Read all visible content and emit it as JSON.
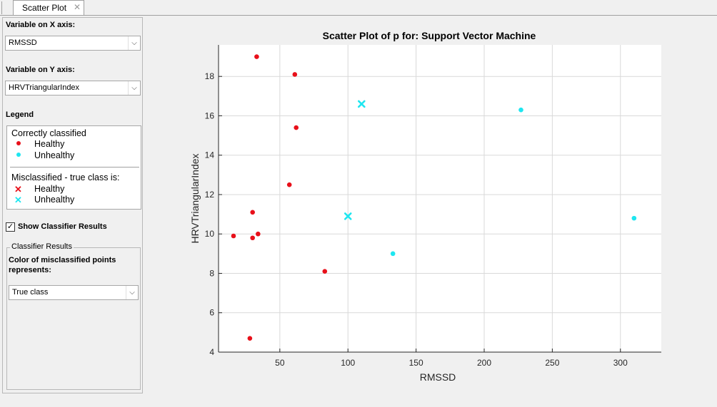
{
  "tab": {
    "label": "Scatter Plot",
    "close_glyph": "✕"
  },
  "panel": {
    "x_axis_label": "Variable on X axis:",
    "x_axis_value": "RMSSD",
    "y_axis_label": "Variable on Y axis:",
    "y_axis_value": "HRVTriangularIndex",
    "legend_heading": "Legend",
    "legend": {
      "correct_title": "Correctly classified",
      "correct_healthy": "Healthy",
      "correct_unhealthy": "Unhealthy",
      "mis_title": "Misclassified - true class is:",
      "mis_healthy": "Healthy",
      "mis_unhealthy": "Unhealthy"
    },
    "show_results_label": "Show Classifier Results",
    "show_results_checked": true,
    "group_title": "Classifier Results",
    "color_meaning_label": "Color of misclassified points represents:",
    "color_meaning_value": "True class"
  },
  "colors": {
    "healthy": "#e8101a",
    "unhealthy": "#1ee6f0",
    "grid": "#d9d9d9",
    "axis": "#262626"
  },
  "chart_data": {
    "type": "scatter",
    "title": "Scatter Plot of p for: Support Vector Machine",
    "xlabel": "RMSSD",
    "ylabel": "HRVTriangularIndex",
    "xlim": [
      5,
      330
    ],
    "ylim": [
      4,
      19.6
    ],
    "xticks": [
      50,
      100,
      150,
      200,
      250,
      300
    ],
    "yticks": [
      4,
      6,
      8,
      10,
      12,
      14,
      16,
      18
    ],
    "grid": true,
    "series": [
      {
        "name": "Correctly classified - Healthy",
        "marker": "dot",
        "color": "#e8101a",
        "points": [
          [
            33,
            19.0
          ],
          [
            61,
            18.1
          ],
          [
            62,
            15.4
          ],
          [
            57,
            12.5
          ],
          [
            30,
            11.1
          ],
          [
            16,
            9.9
          ],
          [
            34,
            10.0
          ],
          [
            30,
            9.8
          ],
          [
            83,
            8.1
          ],
          [
            28,
            4.7
          ]
        ]
      },
      {
        "name": "Correctly classified - Unhealthy",
        "marker": "dot",
        "color": "#1ee6f0",
        "points": [
          [
            227,
            16.3
          ],
          [
            310,
            10.8
          ],
          [
            133,
            9.0
          ]
        ]
      },
      {
        "name": "Misclassified - true class Unhealthy",
        "marker": "x",
        "color": "#1ee6f0",
        "points": [
          [
            110,
            16.6
          ],
          [
            100,
            10.9
          ]
        ]
      }
    ]
  }
}
